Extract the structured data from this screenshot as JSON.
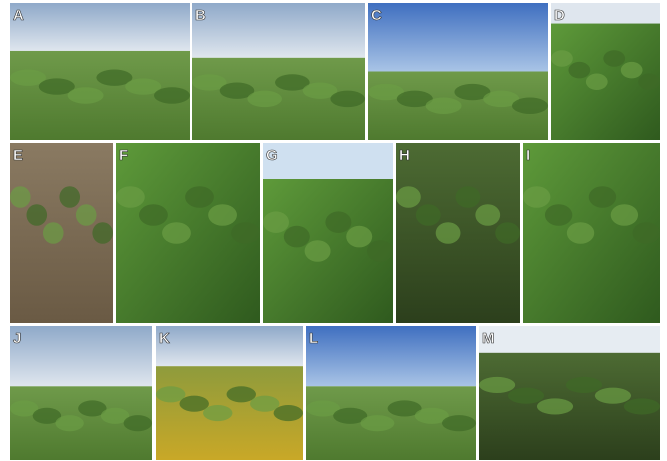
{
  "panels": [
    {
      "label": "A"
    },
    {
      "label": "B"
    },
    {
      "label": "C"
    },
    {
      "label": "D"
    },
    {
      "label": "E"
    },
    {
      "label": "F"
    },
    {
      "label": "G"
    },
    {
      "label": "H"
    },
    {
      "label": "I"
    },
    {
      "label": "J"
    },
    {
      "label": "K"
    },
    {
      "label": "L"
    },
    {
      "label": "M"
    }
  ]
}
